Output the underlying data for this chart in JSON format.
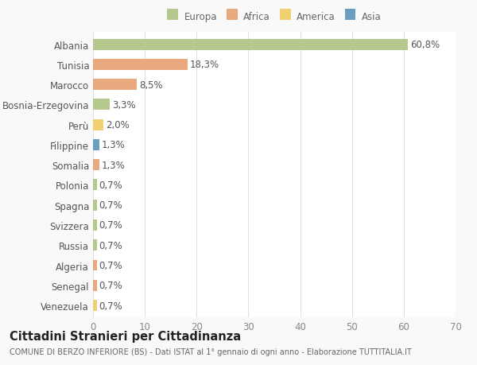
{
  "categories": [
    "Albania",
    "Tunisia",
    "Marocco",
    "Bosnia-Erzegovina",
    "Perù",
    "Filippine",
    "Somalia",
    "Polonia",
    "Spagna",
    "Svizzera",
    "Russia",
    "Algeria",
    "Senegal",
    "Venezuela"
  ],
  "values": [
    60.8,
    18.3,
    8.5,
    3.3,
    2.0,
    1.3,
    1.3,
    0.7,
    0.7,
    0.7,
    0.7,
    0.7,
    0.7,
    0.7
  ],
  "labels": [
    "60,8%",
    "18,3%",
    "8,5%",
    "3,3%",
    "2,0%",
    "1,3%",
    "1,3%",
    "0,7%",
    "0,7%",
    "0,7%",
    "0,7%",
    "0,7%",
    "0,7%",
    "0,7%"
  ],
  "colors": [
    "#b5c98e",
    "#e8a97e",
    "#e8a97e",
    "#b5c98e",
    "#f0d070",
    "#6a9ec0",
    "#e8a97e",
    "#b5c98e",
    "#b5c98e",
    "#b5c98e",
    "#b5c98e",
    "#e8a97e",
    "#e8a97e",
    "#f0d070"
  ],
  "legend_labels": [
    "Europa",
    "Africa",
    "America",
    "Asia"
  ],
  "legend_colors": [
    "#b5c98e",
    "#e8a97e",
    "#f0d070",
    "#6a9ec0"
  ],
  "title": "Cittadini Stranieri per Cittadinanza",
  "subtitle": "COMUNE DI BERZO INFERIORE (BS) - Dati ISTAT al 1° gennaio di ogni anno - Elaborazione TUTTITALIA.IT",
  "xlim": [
    0,
    70
  ],
  "xticks": [
    0,
    10,
    20,
    30,
    40,
    50,
    60,
    70
  ],
  "bg_color": "#f9f9f9",
  "plot_bg_color": "#ffffff",
  "grid_color": "#e0e0e0",
  "bar_height": 0.55,
  "label_fontsize": 8.5,
  "tick_fontsize": 8.5,
  "title_fontsize": 10.5,
  "subtitle_fontsize": 7
}
